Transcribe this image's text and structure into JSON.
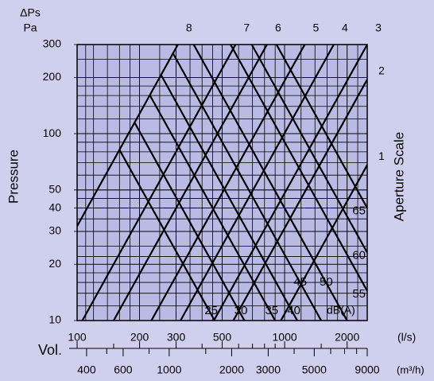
{
  "chart_data": {
    "type": "nomogram",
    "y_title": "Pressure",
    "y_unit_symbol": "ΔPs",
    "y_unit": "Pa",
    "y2_title": "Aperture Scale",
    "x_title": "Vol.",
    "x_unit": "(l/s)",
    "x2_unit": "(m³/h)",
    "db_unit": "dB(A)",
    "log_scale": true,
    "xlim": [
      100,
      2500
    ],
    "ylim": [
      10,
      300
    ],
    "x2lim": [
      360,
      9000
    ],
    "xticks": [
      100,
      200,
      300,
      500,
      1000,
      2000
    ],
    "x_minor_ticks": [
      150,
      400,
      600,
      700,
      800,
      900,
      1500
    ],
    "x2ticks": [
      400,
      600,
      1000,
      2000,
      3000,
      5000,
      9000
    ],
    "x2_minor_ticks": [
      500,
      800,
      1500,
      4000,
      6000,
      7000,
      8000
    ],
    "yticks": [
      10,
      20,
      30,
      40,
      50,
      100,
      200,
      300
    ],
    "xgrid": [
      110,
      120,
      140,
      160,
      180,
      200,
      250,
      300,
      350,
      400,
      450,
      500,
      600,
      700,
      800,
      900,
      1000,
      1200,
      1400,
      1600,
      1800,
      2000,
      2250
    ],
    "ygrid": [
      12,
      14,
      16,
      18,
      20,
      22,
      25,
      30,
      35,
      40,
      45,
      50,
      60,
      70,
      80,
      90,
      100,
      120,
      140,
      160,
      180,
      200,
      250
    ],
    "grid": true,
    "plot_color": "#b9bbe4",
    "line_color": "#000000",
    "aperture_lines": [
      {
        "name": "8",
        "x": [
          100,
          306
        ],
        "values": [
          32,
          300
        ]
      },
      {
        "name": "7",
        "x": [
          106,
          580
        ],
        "values": [
          10,
          300
        ]
      },
      {
        "name": "6",
        "x": [
          150,
          822
        ],
        "values": [
          10,
          300
        ]
      },
      {
        "name": "5",
        "x": [
          228,
          1250
        ],
        "values": [
          10,
          300
        ]
      },
      {
        "name": "4",
        "x": [
          315,
          1725
        ],
        "values": [
          10,
          300
        ]
      },
      {
        "name": "3",
        "x": [
          456,
          2500
        ],
        "values": [
          10,
          300
        ]
      },
      {
        "name": "2",
        "x": [
          566,
          2500
        ],
        "values": [
          10,
          195
        ]
      },
      {
        "name": "1",
        "x": [
          959,
          2500
        ],
        "values": [
          10,
          68
        ]
      }
    ],
    "db_lines": [
      {
        "name": "25",
        "x": [
          160,
          460
        ],
        "values": [
          82,
          10
        ]
      },
      {
        "name": "30",
        "x": [
          189,
          640
        ],
        "values": [
          115,
          10
        ]
      },
      {
        "name": "35",
        "x": [
          224,
          900
        ],
        "values": [
          161,
          10
        ]
      },
      {
        "name": "40",
        "x": [
          254,
          1150
        ],
        "values": [
          206,
          10
        ]
      },
      {
        "name": "45",
        "x": [
          290,
          1500
        ],
        "values": [
          269,
          10
        ]
      },
      {
        "name": "50",
        "x": [
          334,
          2000
        ],
        "values": [
          357,
          10
        ]
      },
      {
        "name": "55",
        "x": [
          410,
          2500
        ],
        "values": [
          538,
          14.4
        ]
      },
      {
        "name": "60",
        "x": [
          461,
          2500
        ],
        "values": [
          680,
          23.1
        ]
      },
      {
        "name": "65",
        "x": [
          529,
          2500
        ],
        "values": [
          895,
          40
        ]
      }
    ]
  }
}
